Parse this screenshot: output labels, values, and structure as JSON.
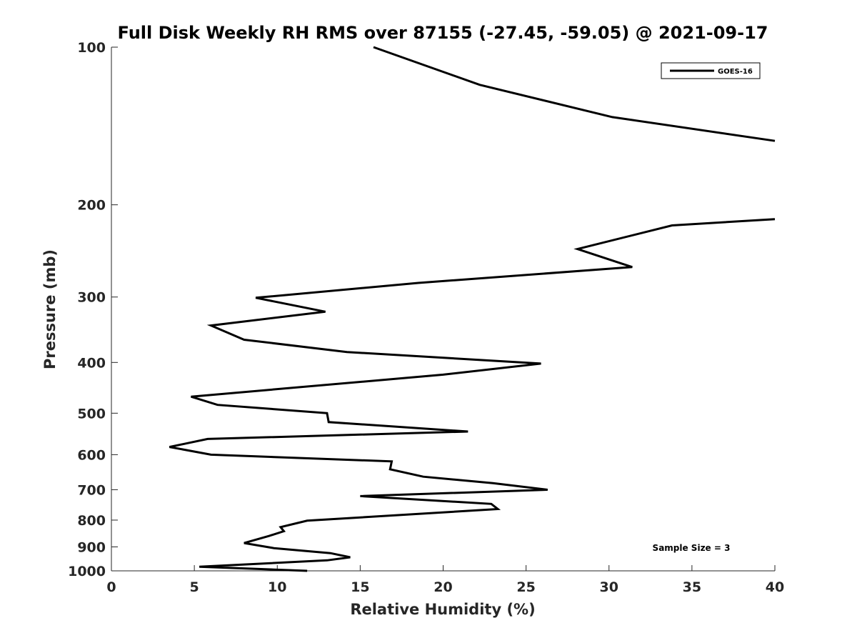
{
  "chart_data": {
    "type": "line",
    "title": "Full Disk Weekly RH RMS over 87155 (-27.45, -59.05) @ 2021-09-17",
    "xlabel": "Relative Humidity (%)",
    "ylabel": "Pressure (mb)",
    "xlim": [
      0,
      40
    ],
    "ylim": [
      100,
      1000
    ],
    "y_scale": "log",
    "y_reversed": true,
    "grid": false,
    "legend_position": "top-right",
    "x_ticks": [
      0,
      5,
      10,
      15,
      20,
      25,
      30,
      35,
      40
    ],
    "y_ticks": [
      100,
      200,
      300,
      400,
      500,
      600,
      700,
      800,
      900,
      1000
    ],
    "series": [
      {
        "name": "GOES-16",
        "color": "#000000",
        "points": [
          {
            "rh": 15.8,
            "p": 100
          },
          {
            "rh": 22.2,
            "p": 118
          },
          {
            "rh": 30.2,
            "p": 136
          },
          {
            "rh": 40.0,
            "p": 151
          },
          {
            "rh": null,
            "p": null
          },
          {
            "rh": 40.0,
            "p": 213
          },
          {
            "rh": 33.8,
            "p": 219
          },
          {
            "rh": 28.1,
            "p": 243
          },
          {
            "rh": 31.4,
            "p": 263
          },
          {
            "rh": 18.5,
            "p": 282
          },
          {
            "rh": 8.7,
            "p": 301
          },
          {
            "rh": 12.9,
            "p": 320
          },
          {
            "rh": 6.0,
            "p": 340
          },
          {
            "rh": 8.0,
            "p": 362
          },
          {
            "rh": 14.2,
            "p": 382
          },
          {
            "rh": 25.9,
            "p": 402
          },
          {
            "rh": 20.0,
            "p": 422
          },
          {
            "rh": 4.8,
            "p": 465
          },
          {
            "rh": 6.4,
            "p": 482
          },
          {
            "rh": 13.0,
            "p": 500
          },
          {
            "rh": 13.1,
            "p": 520
          },
          {
            "rh": 21.5,
            "p": 542
          },
          {
            "rh": 5.8,
            "p": 560
          },
          {
            "rh": 3.5,
            "p": 580
          },
          {
            "rh": 6.0,
            "p": 600
          },
          {
            "rh": 16.9,
            "p": 618
          },
          {
            "rh": 16.8,
            "p": 640
          },
          {
            "rh": 18.8,
            "p": 661
          },
          {
            "rh": 23.0,
            "p": 680
          },
          {
            "rh": 26.3,
            "p": 700
          },
          {
            "rh": 15.0,
            "p": 720
          },
          {
            "rh": 22.9,
            "p": 745
          },
          {
            "rh": 23.3,
            "p": 762
          },
          {
            "rh": 11.8,
            "p": 802
          },
          {
            "rh": 10.2,
            "p": 825
          },
          {
            "rh": 10.4,
            "p": 840
          },
          {
            "rh": 9.5,
            "p": 858
          },
          {
            "rh": 8.0,
            "p": 885
          },
          {
            "rh": 9.8,
            "p": 905
          },
          {
            "rh": 13.2,
            "p": 925
          },
          {
            "rh": 14.4,
            "p": 942
          },
          {
            "rh": 13.0,
            "p": 955
          },
          {
            "rh": 5.3,
            "p": 982
          },
          {
            "rh": 11.8,
            "p": 1000
          }
        ]
      }
    ],
    "annotations": [
      {
        "text": "Sample Size = 3"
      }
    ]
  }
}
